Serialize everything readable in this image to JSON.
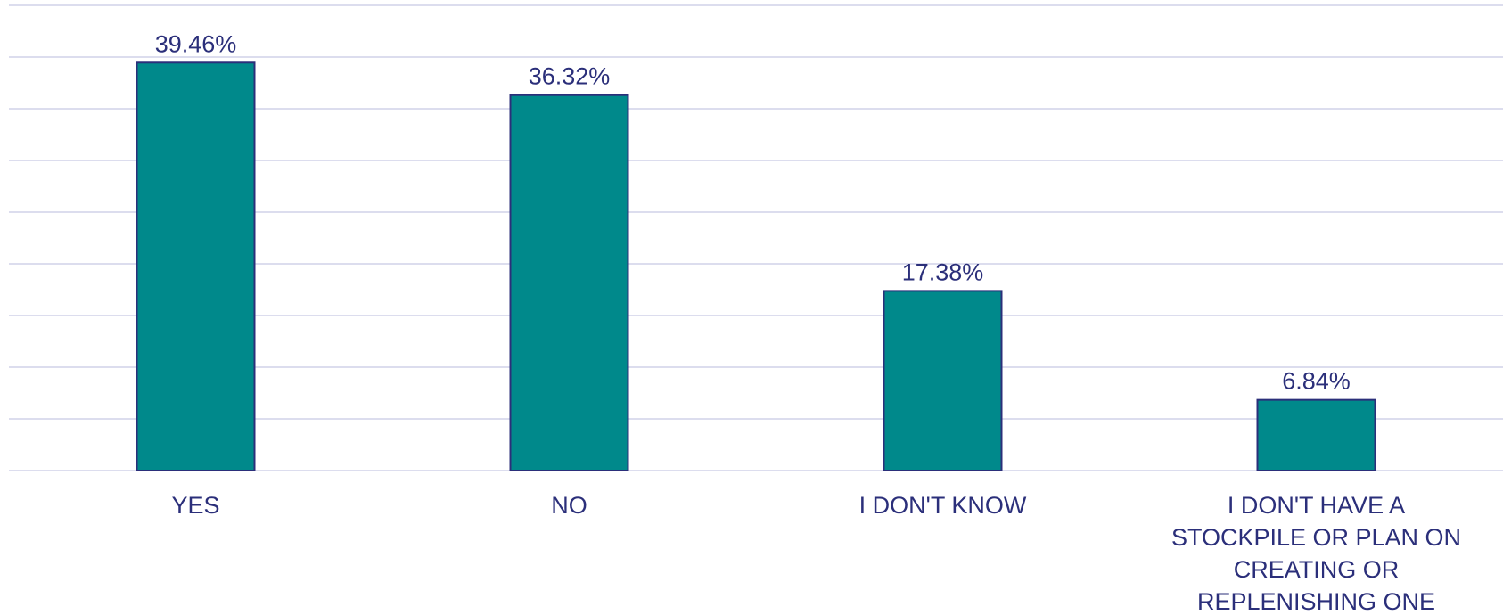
{
  "chart_data": {
    "type": "bar",
    "categories": [
      [
        "YES"
      ],
      [
        "NO"
      ],
      [
        "I DON'T KNOW"
      ],
      [
        "I DON'T HAVE A",
        "STOCKPILE OR PLAN ON",
        "CREATING OR",
        "REPLENISHING ONE"
      ]
    ],
    "values": [
      39.46,
      36.32,
      17.38,
      6.84
    ],
    "value_labels": [
      "39.46%",
      "36.32%",
      "17.38%",
      "6.84%"
    ],
    "ylim": [
      0,
      45
    ],
    "grid": true,
    "gridline_count": 10,
    "title": "",
    "xlabel": "",
    "ylabel": ""
  },
  "colors": {
    "bar_fill": "#00898B",
    "bar_stroke": "#2B2F7A",
    "text": "#2B2F7A",
    "grid": "#DCDDEE"
  }
}
